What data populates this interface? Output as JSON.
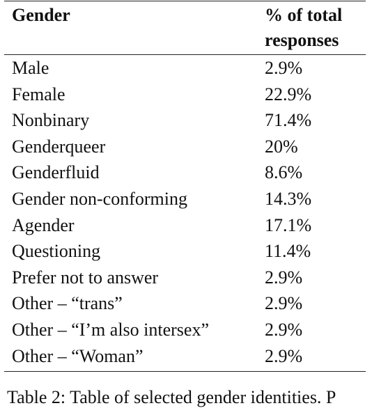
{
  "table": {
    "headers": [
      "Gender",
      "% of total responses"
    ],
    "header_line1": "% of total",
    "header_line2": "responses",
    "rows": [
      {
        "label": "Male",
        "value": "2.9%"
      },
      {
        "label": "Female",
        "value": "22.9%"
      },
      {
        "label": "Nonbinary",
        "value": "71.4%"
      },
      {
        "label": "Genderqueer",
        "value": "20%"
      },
      {
        "label": "Genderfluid",
        "value": "8.6%"
      },
      {
        "label": "Gender non-conforming",
        "value": "14.3%"
      },
      {
        "label": "Agender",
        "value": "17.1%"
      },
      {
        "label": "Questioning",
        "value": "11.4%"
      },
      {
        "label": "Prefer not to answer",
        "value": "2.9%"
      },
      {
        "label": "Other – “trans”",
        "value": "2.9%"
      },
      {
        "label": "Other – “I’m also intersex”",
        "value": "2.9%"
      },
      {
        "label": "Other – “Woman”",
        "value": "2.9%"
      }
    ]
  },
  "caption": "Table 2: Table of selected gender identities. P"
}
